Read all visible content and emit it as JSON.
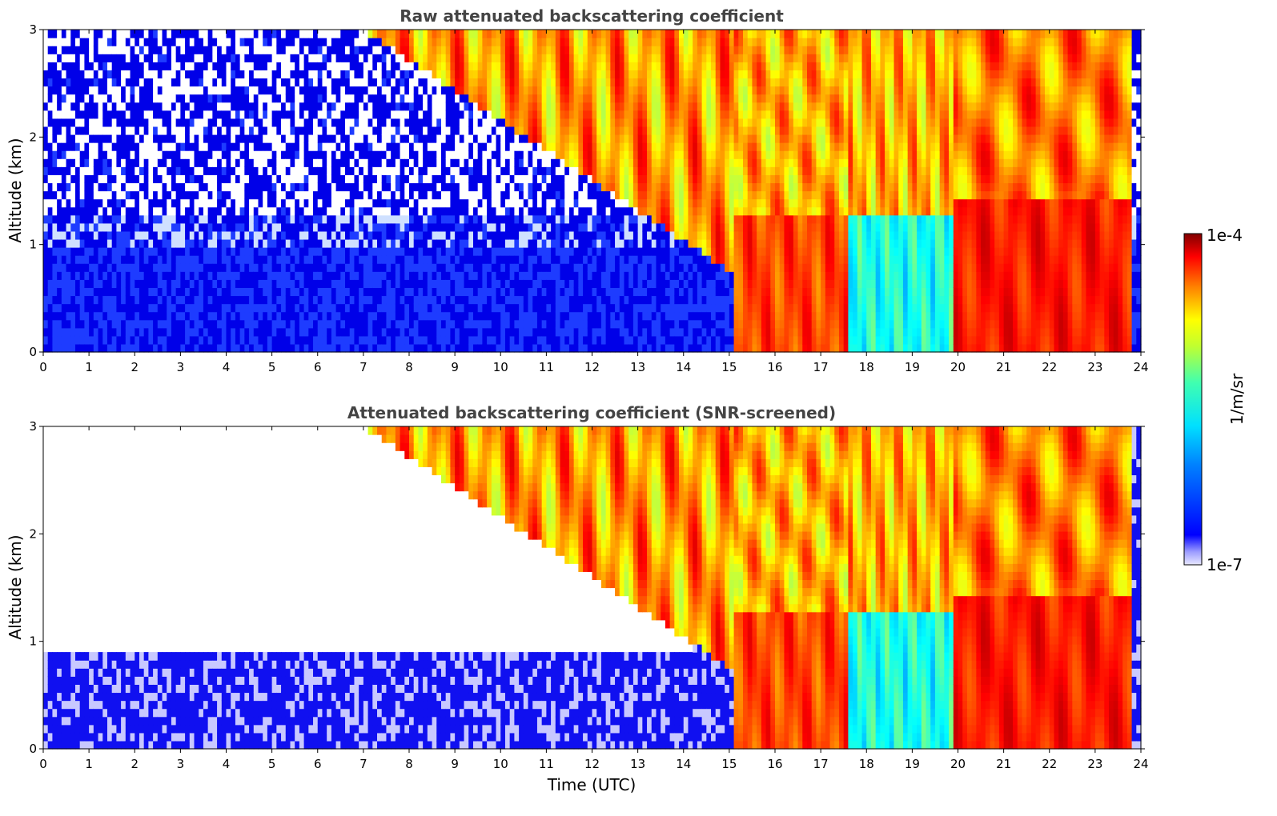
{
  "chart_data": [
    {
      "type": "heatmap",
      "title": "Raw attenuated backscattering coefficient",
      "xlabel": "",
      "ylabel": "Altitude (km)",
      "xlim": [
        0,
        24
      ],
      "ylim": [
        0,
        3
      ],
      "xticks": [
        0,
        1,
        2,
        3,
        4,
        5,
        6,
        7,
        8,
        9,
        10,
        11,
        12,
        13,
        14,
        15,
        16,
        17,
        18,
        19,
        20,
        21,
        22,
        23,
        24
      ],
      "yticks": [
        0,
        1,
        2,
        3
      ],
      "screened": false
    },
    {
      "type": "heatmap",
      "title": "Attenuated backscattering coefficient (SNR-screened)",
      "xlabel": "Time (UTC)",
      "ylabel": "Altitude (km)",
      "xlim": [
        0,
        24
      ],
      "ylim": [
        0,
        3
      ],
      "xticks": [
        0,
        1,
        2,
        3,
        4,
        5,
        6,
        7,
        8,
        9,
        10,
        11,
        12,
        13,
        14,
        15,
        16,
        17,
        18,
        19,
        20,
        21,
        22,
        23,
        24
      ],
      "yticks": [
        0,
        1,
        2,
        3
      ],
      "screened": true
    }
  ],
  "colorbar": {
    "label": "1/m/sr",
    "min_label": "1e-7",
    "max_label": "1e-4",
    "scale": "log",
    "colormap": "jet"
  }
}
